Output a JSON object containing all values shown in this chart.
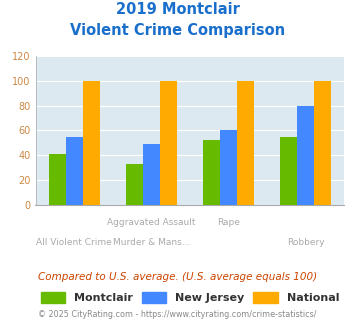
{
  "title_line1": "2019 Montclair",
  "title_line2": "Violent Crime Comparison",
  "cat_labels_top": [
    "",
    "Aggravated Assault",
    "Rape",
    ""
  ],
  "cat_labels_bot": [
    "All Violent Crime",
    "Murder & Mans...",
    "",
    "Robbery"
  ],
  "montclair": [
    41,
    33,
    52,
    55
  ],
  "new_jersey": [
    55,
    49,
    60,
    80
  ],
  "national": [
    100,
    100,
    100,
    100
  ],
  "montclair_color": "#66bb00",
  "nj_color": "#4488ff",
  "national_color": "#ffaa00",
  "ylim": [
    0,
    120
  ],
  "yticks": [
    0,
    20,
    40,
    60,
    80,
    100,
    120
  ],
  "plot_bg": "#dce9f0",
  "footnote": "Compared to U.S. average. (U.S. average equals 100)",
  "copyright": "© 2025 CityRating.com - https://www.cityrating.com/crime-statistics/",
  "legend_labels": [
    "Montclair",
    "New Jersey",
    "National"
  ],
  "title_color": "#1a6fcc",
  "footnote_color": "#cc4400",
  "copyright_color": "#888888",
  "ytick_color": "#cc8844",
  "xlabel_color": "#aaaaaa"
}
